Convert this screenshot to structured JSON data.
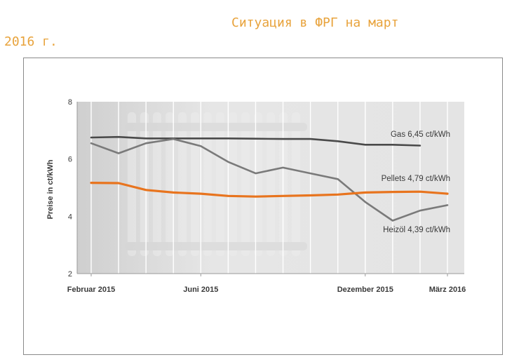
{
  "caption": {
    "line1": "Ситуация в ФРГ на март",
    "line2": "2016 г."
  },
  "colors": {
    "gas": "#4a4a4a",
    "heizoel": "#7a7a7a",
    "pellets": "#e8741e",
    "plot_bg": "#e2e2e2",
    "caption": "#e8a33c"
  },
  "chart_data": {
    "type": "line",
    "title": "",
    "ylabel": "Preise in ct/kWh",
    "xlabel": "",
    "ylim": [
      2,
      8
    ],
    "yticks": [
      "2",
      "4",
      "6",
      "8"
    ],
    "xlim": [
      0,
      13
    ],
    "xticks": [
      {
        "x": 0,
        "label": "Februar 2015"
      },
      {
        "x": 4,
        "label": "Juni 2015"
      },
      {
        "x": 10,
        "label": "Dezember 2015"
      },
      {
        "x": 13,
        "label": "März 2016"
      }
    ],
    "grid": "vertical",
    "series": [
      {
        "key": "gas",
        "label": "Gas 6,45 ct/kWh",
        "x": [
          0,
          1,
          2,
          3,
          4,
          5,
          6,
          7,
          8,
          9,
          10,
          11,
          12
        ],
        "values": [
          6.75,
          6.77,
          6.72,
          6.72,
          6.72,
          6.72,
          6.71,
          6.7,
          6.7,
          6.62,
          6.5,
          6.5,
          6.47
        ]
      },
      {
        "key": "pellets",
        "label": "Pellets 4,79 ct/kWh",
        "x": [
          0,
          1,
          2,
          3,
          4,
          5,
          6,
          7,
          8,
          9,
          10,
          11,
          12,
          13
        ],
        "values": [
          5.17,
          5.16,
          4.92,
          4.83,
          4.79,
          4.71,
          4.69,
          4.71,
          4.73,
          4.76,
          4.83,
          4.85,
          4.86,
          4.79
        ]
      },
      {
        "key": "heizoel",
        "label": "Heizöl 4,39 ct/kWh",
        "x": [
          0,
          1,
          2,
          3,
          4,
          5,
          6,
          7,
          8,
          9,
          10,
          11,
          12,
          13
        ],
        "values": [
          6.55,
          6.2,
          6.55,
          6.7,
          6.45,
          5.9,
          5.5,
          5.7,
          5.5,
          5.3,
          4.5,
          3.85,
          4.2,
          4.39
        ]
      }
    ]
  }
}
